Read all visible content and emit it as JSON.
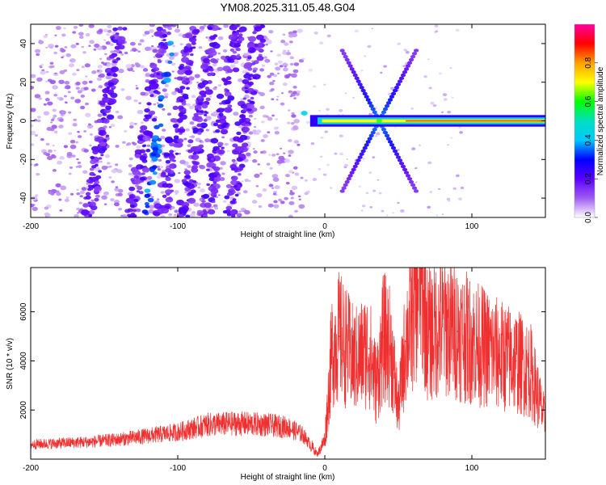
{
  "title": "YM08.2025.311.05.48.G04",
  "chart_data": [
    {
      "type": "heatmap",
      "panel": "top",
      "xlabel": "Height of straight line (km)",
      "ylabel": "Frequency (Hz)",
      "xlim": [
        -200,
        150
      ],
      "ylim": [
        -50,
        50
      ],
      "xticks": [
        -200,
        -100,
        0,
        100
      ],
      "yticks": [
        -40,
        -20,
        0,
        20,
        40
      ],
      "grid": false,
      "colorbar": {
        "label": "Normalized spectral amplitude",
        "range": [
          0,
          1
        ],
        "ticks": [
          0.0,
          0.2,
          0.4,
          0.6,
          0.8
        ],
        "tick_labels": [
          "0.0",
          "0.2",
          "0.4",
          "0.6",
          "0.8"
        ],
        "colors": [
          "#ffffff",
          "#a05cf0",
          "#5a00ff",
          "#0000ff",
          "#00c8ff",
          "#00e0c0",
          "#00ff00",
          "#ffff00",
          "#ffa000",
          "#ff0000",
          "#ff00a0"
        ]
      },
      "features": {
        "scatter_region_x": [
          -200,
          -15
        ],
        "diagonal_streaks_x": [
          -150,
          -120,
          -100,
          -85,
          -70,
          -55
        ],
        "dominant_band": {
          "x": [
            -20,
            150
          ],
          "frequency": 0,
          "amplitude": 0.85
        },
        "x_pattern_center": {
          "x": 37,
          "frequency": 0
        }
      }
    },
    {
      "type": "line",
      "panel": "bottom",
      "xlabel": "Height of straight line (km)",
      "ylabel": "SNR (10 * v/v)",
      "xlim": [
        -200,
        150
      ],
      "ylim": [
        0,
        7800
      ],
      "xticks": [
        -200,
        -100,
        0,
        100
      ],
      "yticks": [
        2000,
        4000,
        6000
      ],
      "grid": false,
      "color": "#f03030",
      "series": [
        {
          "name": "SNR",
          "x": [
            -200,
            -180,
            -160,
            -140,
            -120,
            -100,
            -80,
            -60,
            -40,
            -25,
            -15,
            -5,
            0,
            5,
            10,
            20,
            30,
            35,
            40,
            45,
            50,
            55,
            60,
            65,
            70,
            80,
            90,
            100,
            110,
            120,
            130,
            140,
            150
          ],
          "y": [
            600,
            650,
            700,
            800,
            950,
            1100,
            1400,
            1450,
            1400,
            1300,
            1000,
            200,
            800,
            4500,
            5000,
            4000,
            4500,
            3000,
            5000,
            4500,
            2000,
            4800,
            6000,
            7600,
            5000,
            5500,
            5200,
            4800,
            4500,
            4200,
            4000,
            3600,
            1500
          ]
        }
      ]
    }
  ]
}
